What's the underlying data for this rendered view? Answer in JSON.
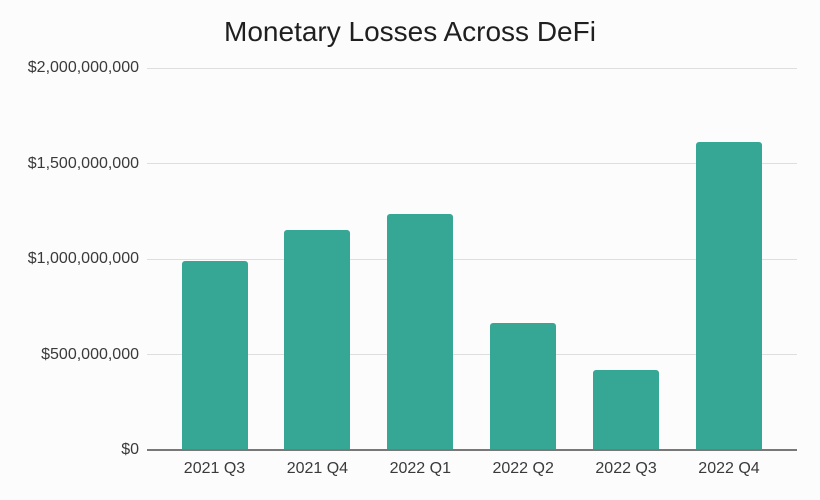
{
  "chart_data": {
    "type": "bar",
    "title": "Monetary Losses Across DeFi",
    "categories": [
      "2021 Q3",
      "2021 Q4",
      "2022 Q1",
      "2022 Q2",
      "2022 Q3",
      "2022 Q4"
    ],
    "values": [
      990000000,
      1150000000,
      1235000000,
      665000000,
      420000000,
      1610000000
    ],
    "xlabel": "",
    "ylabel": "",
    "ylim": [
      0,
      2000000000
    ],
    "yticks": [
      {
        "value": 0,
        "label": "$0"
      },
      {
        "value": 500000000,
        "label": "$500,000,000"
      },
      {
        "value": 1000000000,
        "label": "$1,000,000,000"
      },
      {
        "value": 1500000000,
        "label": "$1,500,000,000"
      },
      {
        "value": 2000000000,
        "label": "$2,000,000,000"
      }
    ],
    "grid": true,
    "legend": "none",
    "colors": {
      "bar": "#35A794",
      "gridline": "#dedede",
      "axis_line": "#787878",
      "background": "#fcfcfc",
      "title_text": "#1f1f1f",
      "label_text": "#3a3a3a"
    }
  }
}
